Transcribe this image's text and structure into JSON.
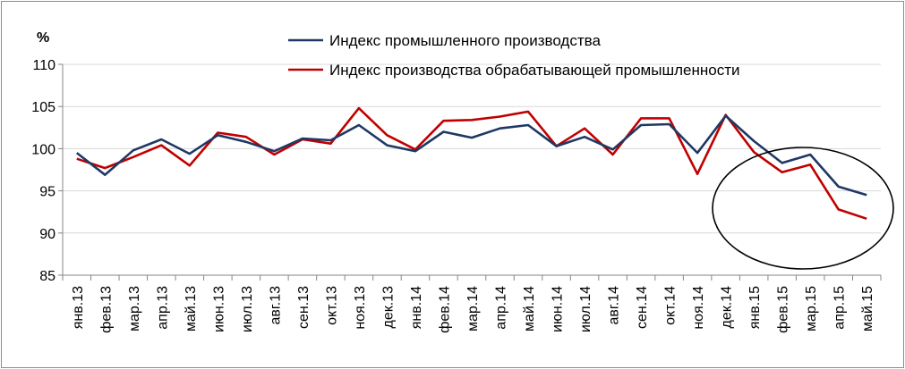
{
  "chart_data": {
    "type": "line",
    "title": "",
    "xlabel": "",
    "ylabel": "%",
    "ylim": [
      85,
      110
    ],
    "yticks": [
      85,
      90,
      95,
      100,
      105,
      110
    ],
    "grid": true,
    "legend_position": "top",
    "annotation": "ellipse around the last five months (янв.15 – май.15)",
    "categories": [
      "янв.13",
      "фев.13",
      "мар.13",
      "апр.13",
      "май.13",
      "июн.13",
      "июл.13",
      "авг.13",
      "сен.13",
      "окт.13",
      "ноя.13",
      "дек.13",
      "янв.14",
      "фев.14",
      "мар.14",
      "апр.14",
      "май.14",
      "июн.14",
      "июл.14",
      "авг.14",
      "сен.14",
      "окт.14",
      "ноя.14",
      "дек.14",
      "янв.15",
      "фев.15",
      "мар.15",
      "апр.15",
      "май.15"
    ],
    "series": [
      {
        "name": "Индекс промышленного производства",
        "color": "#1f3864",
        "values": [
          99.5,
          96.9,
          99.8,
          101.1,
          99.4,
          101.6,
          100.8,
          99.7,
          101.2,
          101.0,
          102.8,
          100.4,
          99.7,
          102.0,
          101.3,
          102.4,
          102.8,
          100.3,
          101.4,
          99.9,
          102.8,
          102.9,
          99.5,
          103.9,
          100.9,
          98.3,
          99.3,
          95.5,
          94.5
        ]
      },
      {
        "name": "Индекс производства обрабатывающей промышленности",
        "color": "#c00000",
        "values": [
          98.8,
          97.7,
          99.0,
          100.4,
          98.0,
          101.9,
          101.4,
          99.3,
          101.1,
          100.6,
          104.8,
          101.6,
          99.9,
          103.3,
          103.4,
          103.8,
          104.4,
          100.3,
          102.4,
          99.3,
          103.6,
          103.6,
          97.0,
          104.0,
          99.6,
          97.2,
          98.1,
          92.8,
          91.7
        ]
      }
    ]
  }
}
